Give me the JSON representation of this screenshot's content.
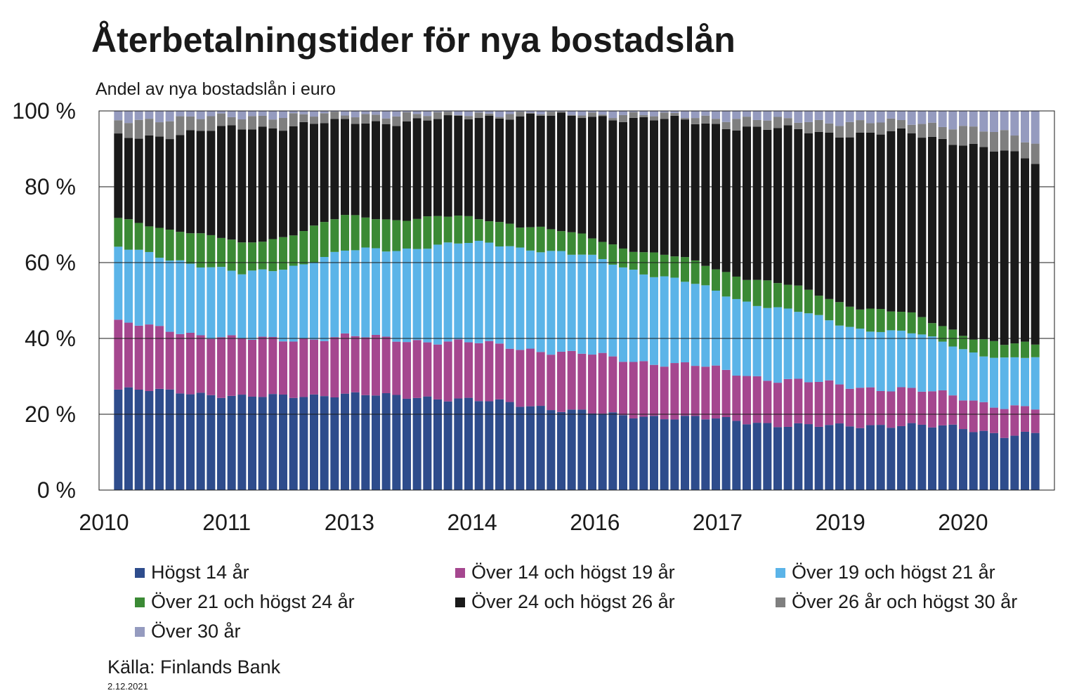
{
  "chart_data": {
    "type": "bar",
    "stacked": true,
    "title": "Återbetalningstider för nya bostadslån",
    "subtitle": "Andel av nya bostadslån i euro",
    "source": "Källa: Finlands Bank",
    "date": "2.12.2021",
    "ylim": [
      0,
      100
    ],
    "y_ticks": [
      "0 %",
      "20 %",
      "40 %",
      "60 %",
      "80 %",
      "100 %"
    ],
    "x_ticks": [
      "2010",
      "2011",
      "2013",
      "2014",
      "2016",
      "2017",
      "2019",
      "2020"
    ],
    "grid": true,
    "legend_position": "bottom",
    "bar_count": 90,
    "series": [
      {
        "name": "Högst 14 år",
        "color": "#2E4C8C",
        "keypoints": [
          [
            0,
            26.5
          ],
          [
            6,
            26
          ],
          [
            12,
            24.5
          ],
          [
            22,
            25
          ],
          [
            30,
            24.5
          ],
          [
            38,
            23
          ],
          [
            48,
            19.5
          ],
          [
            56,
            19
          ],
          [
            64,
            17.5
          ],
          [
            70,
            17
          ],
          [
            76,
            17.5
          ],
          [
            82,
            16
          ],
          [
            86,
            14.5
          ],
          [
            90,
            15
          ]
        ]
      },
      {
        "name": "Över 14 och högst 19 år",
        "color": "#A5478F",
        "keypoints": [
          [
            0,
            17.5
          ],
          [
            6,
            16
          ],
          [
            12,
            15
          ],
          [
            22,
            15
          ],
          [
            30,
            15
          ],
          [
            38,
            15
          ],
          [
            48,
            15
          ],
          [
            56,
            13.5
          ],
          [
            64,
            12
          ],
          [
            70,
            11
          ],
          [
            76,
            9.5
          ],
          [
            82,
            8
          ],
          [
            86,
            7.5
          ],
          [
            90,
            6
          ]
        ]
      },
      {
        "name": "Över 19 och högst 21 år",
        "color": "#5BB4E8",
        "keypoints": [
          [
            0,
            19.5
          ],
          [
            6,
            19
          ],
          [
            12,
            17
          ],
          [
            22,
            22
          ],
          [
            30,
            25
          ],
          [
            38,
            27
          ],
          [
            48,
            25
          ],
          [
            56,
            21
          ],
          [
            64,
            19
          ],
          [
            70,
            16.5
          ],
          [
            76,
            15
          ],
          [
            82,
            13
          ],
          [
            86,
            12.5
          ],
          [
            90,
            13
          ]
        ]
      },
      {
        "name": "Över 21 och högst 24 år",
        "color": "#3B8A35",
        "keypoints": [
          [
            0,
            7.5
          ],
          [
            6,
            8
          ],
          [
            12,
            8
          ],
          [
            22,
            9
          ],
          [
            30,
            7.5
          ],
          [
            38,
            6
          ],
          [
            48,
            5
          ],
          [
            56,
            6
          ],
          [
            64,
            6.5
          ],
          [
            70,
            6
          ],
          [
            76,
            5
          ],
          [
            82,
            4
          ],
          [
            86,
            3.5
          ],
          [
            90,
            3.5
          ]
        ]
      },
      {
        "name": "Över 24 och högst 26 år",
        "color": "#1A1A1A",
        "keypoints": [
          [
            0,
            22
          ],
          [
            6,
            25
          ],
          [
            12,
            31
          ],
          [
            22,
            25
          ],
          [
            30,
            25.5
          ],
          [
            38,
            28
          ],
          [
            48,
            33
          ],
          [
            56,
            37
          ],
          [
            64,
            41
          ],
          [
            70,
            45
          ],
          [
            76,
            48
          ],
          [
            82,
            49.5
          ],
          [
            86,
            50
          ],
          [
            90,
            48
          ]
        ]
      },
      {
        "name": "Över 26 år och högst 30 år",
        "color": "#7F7F7F",
        "keypoints": [
          [
            0,
            4.5
          ],
          [
            6,
            4
          ],
          [
            12,
            3
          ],
          [
            22,
            2
          ],
          [
            30,
            1.5
          ],
          [
            38,
            0.5
          ],
          [
            48,
            0.7
          ],
          [
            56,
            1.5
          ],
          [
            64,
            2.5
          ],
          [
            70,
            3
          ],
          [
            76,
            3
          ],
          [
            82,
            4
          ],
          [
            86,
            5
          ],
          [
            90,
            5
          ]
        ]
      },
      {
        "name": "Över 30 år",
        "color": "#959BBF",
        "keypoints": [
          [
            0,
            2.5
          ],
          [
            6,
            2
          ],
          [
            12,
            1.5
          ],
          [
            22,
            1
          ],
          [
            30,
            1
          ],
          [
            38,
            0.5
          ],
          [
            48,
            0.8
          ],
          [
            56,
            1.5
          ],
          [
            64,
            2.5
          ],
          [
            70,
            3
          ],
          [
            76,
            3
          ],
          [
            82,
            4
          ],
          [
            86,
            6
          ],
          [
            90,
            9.5
          ]
        ]
      }
    ]
  }
}
